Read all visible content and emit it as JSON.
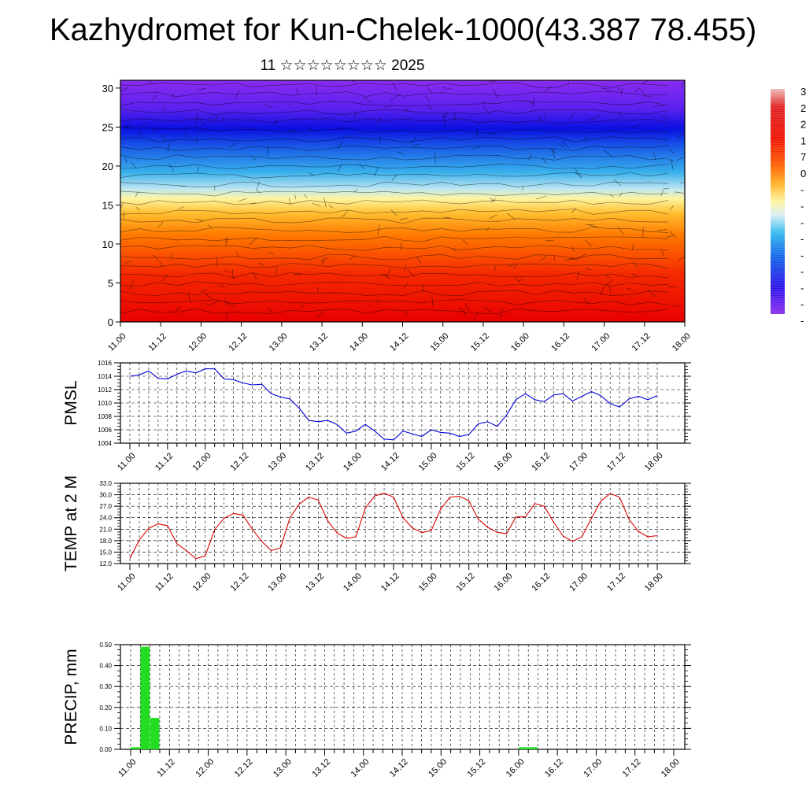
{
  "header": {
    "title": "Kazhydromet for Kun-Chelek-1000(43.387 78.455)",
    "subtitle": "11 ☆☆☆☆☆☆☆☆ 2025"
  },
  "colors": {
    "pmsl_line": "#0000dd",
    "temp_line": "#dd0000",
    "precip_bar": "#22dd22"
  },
  "chart_data": [
    {
      "type": "heatmap",
      "title": "",
      "x_tick_labels": [
        "11.00",
        "11.12",
        "12.00",
        "12.12",
        "13.00",
        "13.12",
        "14.00",
        "14.12",
        "15.00",
        "15.12",
        "16.00",
        "16.12",
        "17.00",
        "17.12",
        "18.00"
      ],
      "y_tick_labels": [
        "0",
        "5",
        "10",
        "15",
        "20",
        "25",
        "30"
      ],
      "ylim": [
        0,
        31
      ],
      "colorbar_labels": [
        "3",
        "2",
        "2",
        "1",
        "7",
        "0",
        "-",
        "-",
        "-",
        "-",
        "-",
        "-",
        "-",
        "-",
        "-"
      ],
      "description_colors": [
        "#ee0000",
        "#ff8800",
        "#ffee88",
        "#44bbee",
        "#0000ee",
        "#8822ee"
      ]
    },
    {
      "type": "line",
      "ylabel": "PMSL",
      "ylim": [
        1004,
        1016
      ],
      "y_tick_labels": [
        "1016",
        "1014",
        "1012",
        "1010",
        "1008",
        "1006",
        "1004"
      ],
      "x_tick_labels": [
        "11.00",
        "11.12",
        "12.00",
        "12.12",
        "13.00",
        "13.12",
        "14.00",
        "14.12",
        "15.00",
        "15.12",
        "16.00",
        "16.12",
        "17.00",
        "17.12",
        "18.00"
      ],
      "values": [
        1014.0,
        1014.2,
        1014.8,
        1013.7,
        1013.6,
        1014.3,
        1014.8,
        1014.5,
        1015.1,
        1015.1,
        1013.6,
        1013.5,
        1013.0,
        1012.7,
        1012.8,
        1011.4,
        1010.9,
        1010.6,
        1009.2,
        1007.4,
        1007.2,
        1007.4,
        1006.8,
        1005.5,
        1005.8,
        1006.8,
        1005.8,
        1004.6,
        1004.5,
        1005.8,
        1005.4,
        1005.0,
        1006.0,
        1005.6,
        1005.5,
        1005.0,
        1005.3,
        1006.9,
        1007.2,
        1006.5,
        1008.2,
        1010.5,
        1011.4,
        1010.5,
        1010.2,
        1011.2,
        1011.4,
        1010.3,
        1011.0,
        1011.7,
        1011.1,
        1009.9,
        1009.4,
        1010.6,
        1011.0,
        1010.5,
        1011.1
      ]
    },
    {
      "type": "line",
      "ylabel": "TEMP at 2 M",
      "ylim": [
        12,
        33
      ],
      "y_tick_labels": [
        "33.0",
        "30.0",
        "27.0",
        "24.0",
        "21.0",
        "18.0",
        "15.0",
        "12.0"
      ],
      "x_tick_labels": [
        "11.00",
        "11.12",
        "12.00",
        "12.12",
        "13.00",
        "13.12",
        "14.00",
        "14.12",
        "15.00",
        "15.12",
        "16.00",
        "16.12",
        "17.00",
        "17.12",
        "18.00"
      ],
      "values": [
        13.3,
        18.2,
        21.2,
        22.4,
        21.9,
        17.2,
        15.4,
        13.3,
        14.0,
        20.9,
        23.8,
        25.1,
        24.7,
        21.0,
        17.8,
        15.4,
        16.1,
        24.0,
        27.6,
        29.4,
        28.6,
        23.2,
        20.0,
        18.6,
        19.0,
        26.5,
        29.7,
        30.4,
        29.4,
        24.0,
        21.3,
        20.1,
        20.6,
        26.2,
        29.4,
        29.6,
        28.4,
        23.6,
        21.5,
        20.2,
        19.8,
        24.2,
        24.2,
        27.7,
        27.0,
        22.8,
        19.2,
        17.8,
        19.0,
        23.8,
        28.3,
        30.3,
        29.4,
        23.6,
        20.4,
        19.0,
        19.3
      ]
    },
    {
      "type": "bar",
      "ylabel": "PRECIP, mm",
      "ylim": [
        0,
        0.5
      ],
      "y_tick_labels": [
        "0.50",
        "0.40",
        "0.30",
        "0.20",
        "0.10",
        "0.00"
      ],
      "x_tick_labels": [
        "11.00",
        "11.12",
        "12.00",
        "12.12",
        "13.00",
        "13.12",
        "14.00",
        "14.12",
        "15.00",
        "15.12",
        "16.00",
        "16.12",
        "17.00",
        "17.12",
        "18.00"
      ],
      "values": [
        0.01,
        0.49,
        0.15,
        0,
        0,
        0,
        0,
        0,
        0,
        0,
        0,
        0,
        0,
        0,
        0,
        0,
        0,
        0,
        0,
        0,
        0,
        0,
        0,
        0,
        0,
        0,
        0,
        0,
        0,
        0,
        0,
        0,
        0,
        0,
        0,
        0,
        0,
        0,
        0,
        0,
        0.01,
        0.01,
        0,
        0,
        0,
        0,
        0,
        0,
        0,
        0,
        0,
        0,
        0,
        0,
        0,
        0
      ]
    }
  ]
}
